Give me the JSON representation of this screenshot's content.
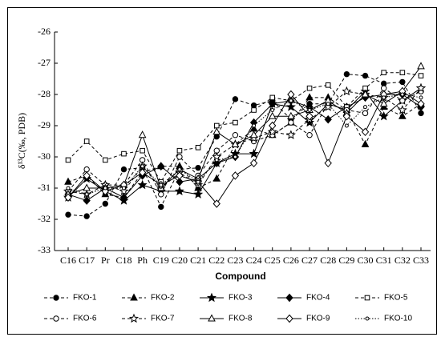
{
  "chart_data": {
    "type": "line",
    "y_label": "δ¹³C(‰, PDB)",
    "x_label": "Compound",
    "categories": [
      "C16",
      "C17",
      "Pr",
      "C18",
      "Ph",
      "C19",
      "C20",
      "C21",
      "C22",
      "C23",
      "C24",
      "C25",
      "C26",
      "C27",
      "C28",
      "C29",
      "C30",
      "C31",
      "C32",
      "C33"
    ],
    "ylim": [
      -33,
      -26
    ],
    "yticks": [
      -33,
      -32,
      -31,
      -30,
      -29,
      -28,
      -27,
      -26
    ],
    "series": [
      {
        "name": "FKO-1",
        "color": "#000000",
        "marker": "circle",
        "filled": true,
        "dash": "dashed",
        "values": [
          -31.85,
          -31.9,
          -31.5,
          -30.4,
          -30.35,
          -31.6,
          -30.4,
          -30.35,
          -29.35,
          -28.15,
          -28.35,
          -28.2,
          -28.8,
          -28.3,
          -28.3,
          -27.35,
          -27.4,
          -27.65,
          -27.6,
          -28.6
        ]
      },
      {
        "name": "FKO-2",
        "color": "#000000",
        "marker": "triangle",
        "filled": true,
        "dash": "dashed",
        "values": [
          -30.8,
          -30.6,
          -31.2,
          -31.3,
          -30.5,
          -30.3,
          -30.3,
          -31.0,
          -30.7,
          -29.6,
          -29.1,
          -29.3,
          -28.9,
          -28.1,
          -28.1,
          -28.5,
          -29.6,
          -28.4,
          -28.7,
          -28.3
        ]
      },
      {
        "name": "FKO-3",
        "color": "#000000",
        "marker": "star",
        "filled": true,
        "dash": "solid",
        "values": [
          -31.3,
          -30.7,
          -31.1,
          -31.4,
          -30.9,
          -31.1,
          -31.1,
          -31.2,
          -30.2,
          -29.9,
          -29.9,
          -28.3,
          -28.4,
          -28.9,
          -28.3,
          -28.5,
          -27.9,
          -28.7,
          -28.2,
          -27.8
        ]
      },
      {
        "name": "FKO-4",
        "color": "#000000",
        "marker": "diamond",
        "filled": true,
        "dash": "solid",
        "values": [
          -31.2,
          -31.4,
          -31.0,
          -31.3,
          -30.6,
          -30.3,
          -30.8,
          -30.7,
          -30.2,
          -30.0,
          -28.9,
          -28.3,
          -28.2,
          -28.4,
          -28.8,
          -28.4,
          -28.1,
          -28.0,
          -28.0,
          -28.4
        ]
      },
      {
        "name": "FKO-5",
        "color": "#000000",
        "marker": "square",
        "filled": false,
        "dash": "dashed",
        "values": [
          -30.1,
          -29.5,
          -30.1,
          -29.9,
          -29.8,
          -30.8,
          -29.8,
          -29.7,
          -29.0,
          -28.9,
          -28.5,
          -28.1,
          -28.2,
          -27.8,
          -27.7,
          -28.4,
          -27.8,
          -27.3,
          -27.3,
          -27.4
        ]
      },
      {
        "name": "FKO-6",
        "color": "#000000",
        "marker": "circle",
        "filled": false,
        "dash": "dashed",
        "values": [
          -31.1,
          -30.4,
          -30.9,
          -30.9,
          -30.1,
          -31.2,
          -30.0,
          -30.6,
          -29.8,
          -29.3,
          -29.5,
          -29.3,
          -28.9,
          -29.3,
          -28.3,
          -28.5,
          -28.6,
          -27.8,
          -28.2,
          -27.9
        ]
      },
      {
        "name": "FKO-7",
        "color": "#000000",
        "marker": "star",
        "filled": false,
        "dash": "dashed",
        "values": [
          -31.1,
          -31.2,
          -30.9,
          -31.1,
          -30.3,
          -31.0,
          -30.5,
          -30.9,
          -30.0,
          -29.6,
          -29.4,
          -29.2,
          -29.3,
          -28.8,
          -28.4,
          -27.9,
          -28.0,
          -28.1,
          -28.5,
          -27.8
        ]
      },
      {
        "name": "FKO-8",
        "color": "#000000",
        "marker": "triangle",
        "filled": false,
        "dash": "solid",
        "values": [
          -31.2,
          -31.0,
          -31.0,
          -30.9,
          -29.3,
          -31.0,
          -30.4,
          -30.7,
          -29.2,
          -29.6,
          -29.3,
          -28.7,
          -28.7,
          -28.5,
          -28.2,
          -28.6,
          -28.0,
          -28.3,
          -27.9,
          -27.1
        ]
      },
      {
        "name": "FKO-9",
        "color": "#000000",
        "marker": "diamond",
        "filled": false,
        "dash": "solid",
        "values": [
          -31.3,
          -30.6,
          -31.1,
          -30.9,
          -30.5,
          -30.9,
          -30.6,
          -30.8,
          -31.5,
          -30.6,
          -30.2,
          -29.0,
          -28.0,
          -28.7,
          -30.2,
          -28.7,
          -29.2,
          -28.0,
          -27.9,
          -28.3
        ]
      },
      {
        "name": "FKO-10",
        "color": "#000000",
        "marker": "dot",
        "filled": false,
        "dash": "dotted",
        "values": [
          -31.0,
          -31.2,
          -31.0,
          -31.0,
          -30.3,
          -30.9,
          -30.4,
          -30.8,
          -30.1,
          -30.0,
          -29.0,
          -28.5,
          -28.2,
          -28.5,
          -28.3,
          -29.0,
          -28.4,
          -28.1,
          -28.0,
          -28.1
        ]
      }
    ]
  }
}
